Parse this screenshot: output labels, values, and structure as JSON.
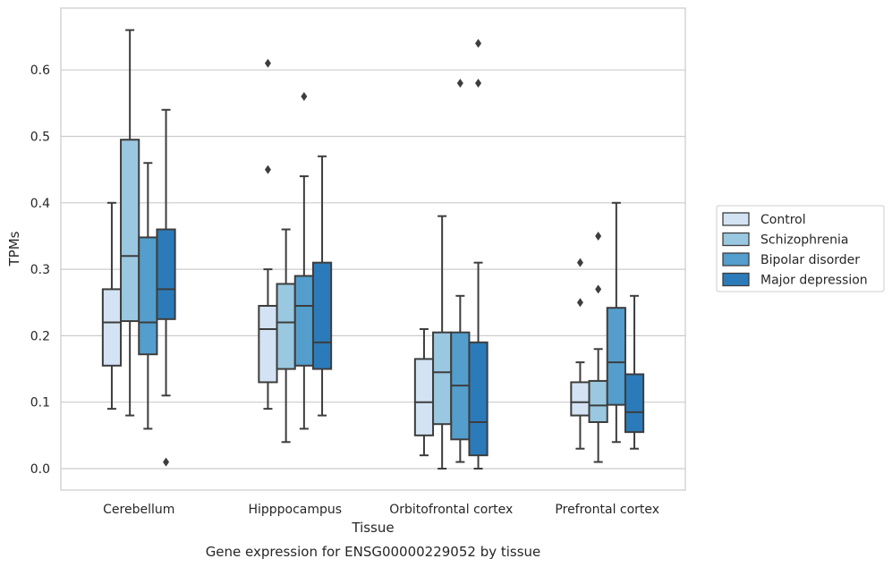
{
  "chart_data": {
    "type": "box",
    "xlabel": "Tissue",
    "ylabel": "TPMs",
    "caption": "Gene expression for ENSG00000229052 by tissue",
    "ylim": [
      -0.032,
      0.695
    ],
    "yticks": [
      "0.0",
      "0.1",
      "0.2",
      "0.3",
      "0.4",
      "0.5",
      "0.6"
    ],
    "grid": "horizontal",
    "legend_position": "right",
    "categories": [
      "Cerebellum",
      "Hipppocampus",
      "Orbitofrontal cortex",
      "Prefrontal cortex"
    ],
    "series": [
      {
        "name": "Control",
        "color": "#d3e3f3",
        "boxes": [
          {
            "whislo": 0.09,
            "q1": 0.155,
            "med": 0.22,
            "q3": 0.27,
            "whishi": 0.4,
            "fliers": []
          },
          {
            "whislo": 0.09,
            "q1": 0.13,
            "med": 0.21,
            "q3": 0.245,
            "whishi": 0.3,
            "fliers": [
              0.45,
              0.61
            ]
          },
          {
            "whislo": 0.02,
            "q1": 0.05,
            "med": 0.1,
            "q3": 0.165,
            "whishi": 0.21,
            "fliers": []
          },
          {
            "whislo": 0.03,
            "q1": 0.08,
            "med": 0.1,
            "q3": 0.13,
            "whishi": 0.16,
            "fliers": [
              0.25,
              0.31
            ]
          }
        ]
      },
      {
        "name": "Schizophrenia",
        "color": "#9ac8e0",
        "boxes": [
          {
            "whislo": 0.08,
            "q1": 0.222,
            "med": 0.32,
            "q3": 0.495,
            "whishi": 0.66,
            "fliers": []
          },
          {
            "whislo": 0.04,
            "q1": 0.15,
            "med": 0.22,
            "q3": 0.278,
            "whishi": 0.36,
            "fliers": []
          },
          {
            "whislo": 0.0,
            "q1": 0.067,
            "med": 0.145,
            "q3": 0.205,
            "whishi": 0.38,
            "fliers": []
          },
          {
            "whislo": 0.01,
            "q1": 0.07,
            "med": 0.095,
            "q3": 0.132,
            "whishi": 0.18,
            "fliers": [
              0.27,
              0.35
            ]
          }
        ]
      },
      {
        "name": "Bipolar disorder",
        "color": "#539ecd",
        "boxes": [
          {
            "whislo": 0.06,
            "q1": 0.172,
            "med": 0.22,
            "q3": 0.348,
            "whishi": 0.46,
            "fliers": []
          },
          {
            "whislo": 0.06,
            "q1": 0.155,
            "med": 0.245,
            "q3": 0.29,
            "whishi": 0.44,
            "fliers": [
              0.56
            ]
          },
          {
            "whislo": 0.01,
            "q1": 0.044,
            "med": 0.125,
            "q3": 0.205,
            "whishi": 0.26,
            "fliers": [
              0.58
            ]
          },
          {
            "whislo": 0.04,
            "q1": 0.096,
            "med": 0.16,
            "q3": 0.242,
            "whishi": 0.4,
            "fliers": []
          }
        ]
      },
      {
        "name": "Major depression",
        "color": "#2b7bba",
        "boxes": [
          {
            "whislo": 0.11,
            "q1": 0.225,
            "med": 0.27,
            "q3": 0.36,
            "whishi": 0.54,
            "fliers": [
              0.01
            ]
          },
          {
            "whislo": 0.08,
            "q1": 0.15,
            "med": 0.19,
            "q3": 0.31,
            "whishi": 0.47,
            "fliers": []
          },
          {
            "whislo": 0.0,
            "q1": 0.02,
            "med": 0.07,
            "q3": 0.19,
            "whishi": 0.31,
            "fliers": [
              0.58,
              0.64
            ]
          },
          {
            "whislo": 0.03,
            "q1": 0.055,
            "med": 0.085,
            "q3": 0.142,
            "whishi": 0.26,
            "fliers": []
          }
        ]
      }
    ]
  }
}
